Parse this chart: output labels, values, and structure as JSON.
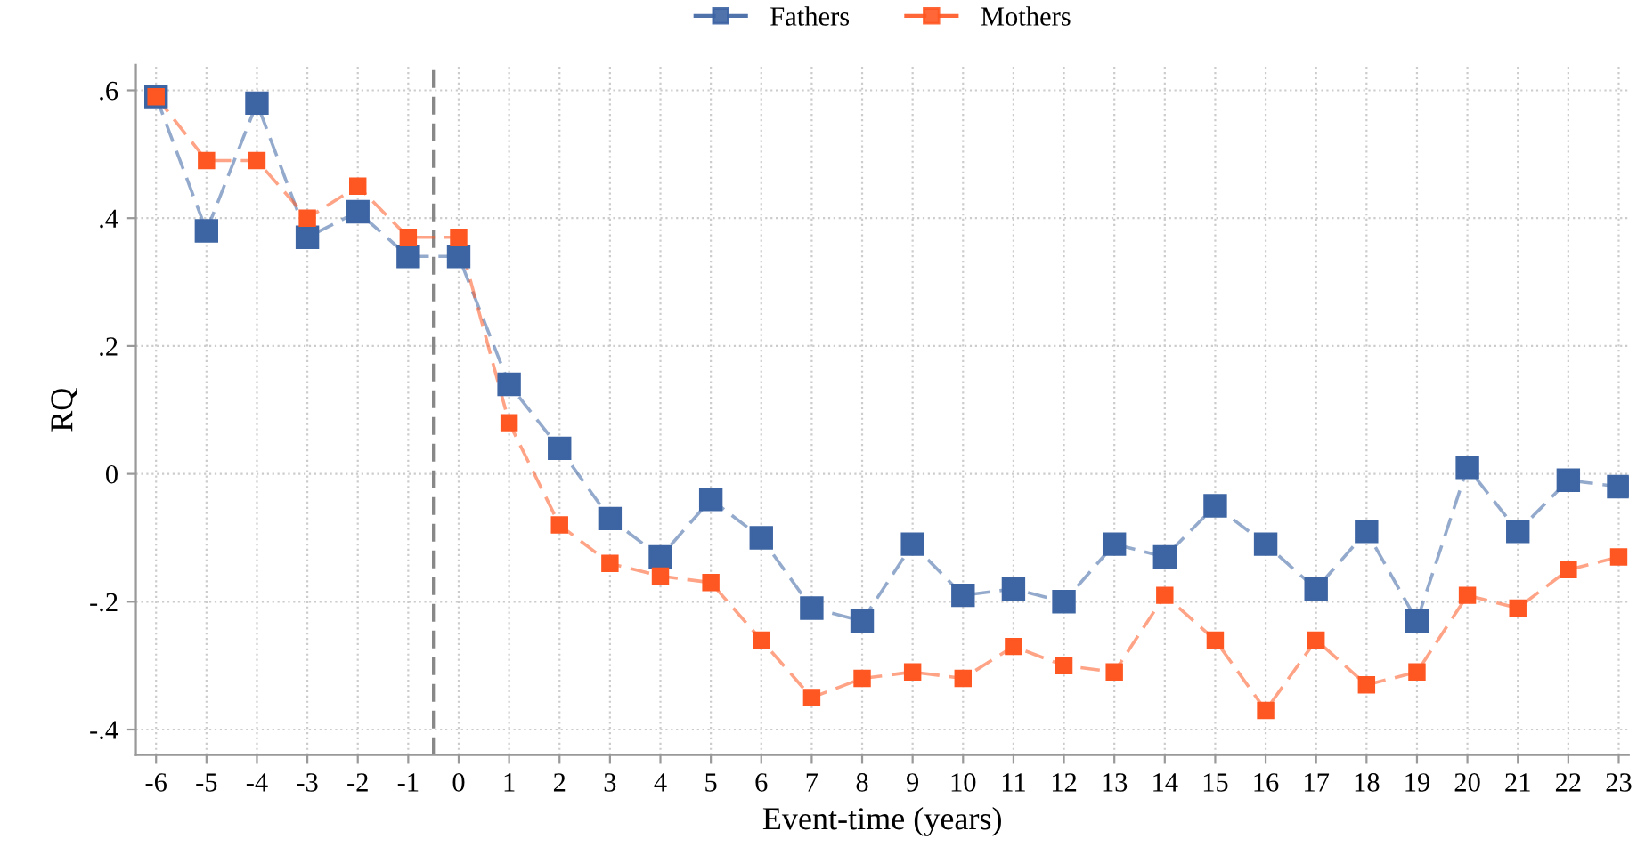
{
  "chart_data": {
    "type": "line",
    "xlabel": "Event-time (years)",
    "ylabel": "RQ",
    "x": [
      -6,
      -5,
      -4,
      -3,
      -2,
      -1,
      0,
      1,
      2,
      3,
      4,
      5,
      6,
      7,
      8,
      9,
      10,
      11,
      12,
      13,
      14,
      15,
      16,
      17,
      18,
      19,
      20,
      21,
      22,
      23
    ],
    "series": [
      {
        "name": "Fathers",
        "color": "#3d64a3",
        "values": [
          0.59,
          0.38,
          0.58,
          0.37,
          0.41,
          0.34,
          0.34,
          0.14,
          0.04,
          -0.07,
          -0.13,
          -0.04,
          -0.1,
          -0.21,
          -0.23,
          -0.11,
          -0.19,
          -0.18,
          -0.2,
          -0.11,
          -0.13,
          -0.05,
          -0.11,
          -0.18,
          -0.09,
          -0.23,
          0.01,
          -0.09,
          -0.01,
          -0.02
        ]
      },
      {
        "name": "Mothers",
        "color": "#ff5722",
        "values": [
          0.59,
          0.49,
          0.49,
          0.4,
          0.45,
          0.37,
          0.37,
          0.08,
          -0.08,
          -0.14,
          -0.16,
          -0.17,
          -0.26,
          -0.35,
          -0.32,
          -0.31,
          -0.32,
          -0.27,
          -0.3,
          -0.31,
          -0.19,
          -0.26,
          -0.37,
          -0.26,
          -0.33,
          -0.31,
          -0.19,
          -0.21,
          -0.15,
          -0.13
        ]
      }
    ],
    "xlim": [
      -6.4,
      23.2
    ],
    "xticks": [
      -6,
      -5,
      -4,
      -3,
      -2,
      -1,
      0,
      1,
      2,
      3,
      4,
      5,
      6,
      7,
      8,
      9,
      10,
      11,
      12,
      13,
      14,
      15,
      16,
      17,
      18,
      19,
      20,
      21,
      22,
      23
    ],
    "ylim": [
      -0.44,
      0.64
    ],
    "yticks": [
      {
        "value": -0.4,
        "label": "-.4"
      },
      {
        "value": -0.2,
        "label": "-.2"
      },
      {
        "value": 0,
        "label": "0"
      },
      {
        "value": 0.2,
        "label": ".2"
      },
      {
        "value": 0.4,
        "label": ".4"
      },
      {
        "value": 0.6,
        "label": ".6"
      }
    ],
    "ref_lines": [
      {
        "axis": "x",
        "value": -0.5,
        "color": "#888888",
        "line_style": "dashed"
      }
    ],
    "grid": true,
    "legend": "top",
    "marker": "square",
    "line_style": "dashed"
  }
}
